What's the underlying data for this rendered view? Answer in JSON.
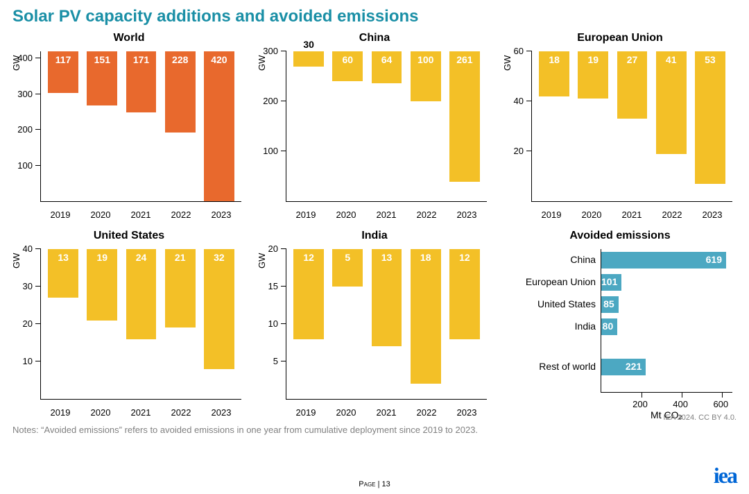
{
  "title": {
    "text": "Solar PV capacity additions and avoided emissions",
    "color": "#1a8fa6"
  },
  "colors": {
    "orange": "#e8692d",
    "yellow": "#f3c027",
    "teal": "#4ca8c2",
    "axis": "#000000",
    "bg": "#ffffff",
    "notes": "#808080"
  },
  "fonts": {
    "title": 24,
    "panel_title": 16,
    "tick": 13,
    "bar_label": 14
  },
  "categories": [
    "2019",
    "2020",
    "2021",
    "2022",
    "2023"
  ],
  "charts": [
    {
      "title": "World",
      "ylabel": "GW",
      "type": "bar",
      "color": "#e8692d",
      "values": [
        117,
        151,
        171,
        228,
        420
      ],
      "ymax": 420,
      "ytick_step": 100,
      "ylim_top": 400
    },
    {
      "title": "China",
      "ylabel": "GW",
      "type": "bar",
      "color": "#f3c027",
      "values": [
        30,
        60,
        64,
        100,
        261
      ],
      "ymax": 300,
      "ytick_step": 100,
      "ylim_top": 300
    },
    {
      "title": "European Union",
      "ylabel": "GW",
      "type": "bar",
      "color": "#f3c027",
      "values": [
        18,
        19,
        27,
        41,
        53
      ],
      "ymax": 60,
      "ytick_step": 20,
      "ylim_top": 60
    },
    {
      "title": "United States",
      "ylabel": "GW",
      "type": "bar",
      "color": "#f3c027",
      "values": [
        13,
        19,
        24,
        21,
        32
      ],
      "ymax": 40,
      "ytick_step": 10,
      "ylim_top": 40
    },
    {
      "title": "India",
      "ylabel": "GW",
      "type": "bar",
      "color": "#f3c027",
      "values": [
        12,
        5,
        13,
        18,
        12
      ],
      "ymax": 20,
      "ytick_step": 5,
      "ylim_top": 20
    },
    {
      "title": "Avoided emissions",
      "type": "hbar",
      "color": "#4ca8c2",
      "xlabel": "Mt CO₂",
      "xmax": 650,
      "xtick_step": 200,
      "xlim_top": 600,
      "items": [
        {
          "label": "China",
          "value": 619
        },
        {
          "label": "European Union",
          "value": 101
        },
        {
          "label": "United States",
          "value": 85
        },
        {
          "label": "India",
          "value": 80
        },
        {
          "label": "Rest of world",
          "value": 221,
          "gap": true
        }
      ]
    }
  ],
  "notes": "Notes: “Avoided emissions” refers to avoided emissions in one year from cumulative deployment since 2019 to 2023.",
  "attrib": "IEA 2024. CC BY 4.0.",
  "footer": "Page | 13",
  "logo": "iea"
}
